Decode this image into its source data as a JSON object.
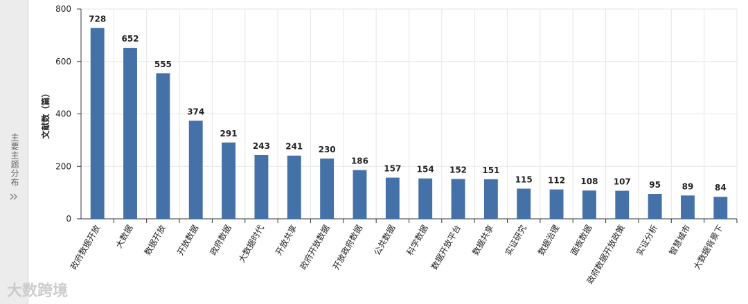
{
  "sidebar": {
    "title": "主要主题分布"
  },
  "watermark": "大数跨境",
  "chart_data": {
    "type": "bar",
    "y_label": "文献数（篇）",
    "categories": [
      "政府数据开放",
      "大数据",
      "数据开放",
      "开放数据",
      "政府数据",
      "大数据时代",
      "开放共享",
      "政府开放数据",
      "开放政府数据",
      "公共数据",
      "科学数据",
      "数据开放平台",
      "数据共享",
      "实证研究",
      "数据治理",
      "面板数据",
      "政府数据开放政策",
      "实证分析",
      "智慧城市",
      "大数据背景下"
    ],
    "values": [
      728,
      652,
      555,
      374,
      291,
      243,
      241,
      230,
      186,
      157,
      154,
      152,
      151,
      115,
      112,
      108,
      107,
      95,
      89,
      84
    ],
    "color": "#4472a8",
    "ylim": [
      0,
      800
    ],
    "yticks": [
      0,
      200,
      400,
      600,
      800
    ],
    "grid": true
  }
}
